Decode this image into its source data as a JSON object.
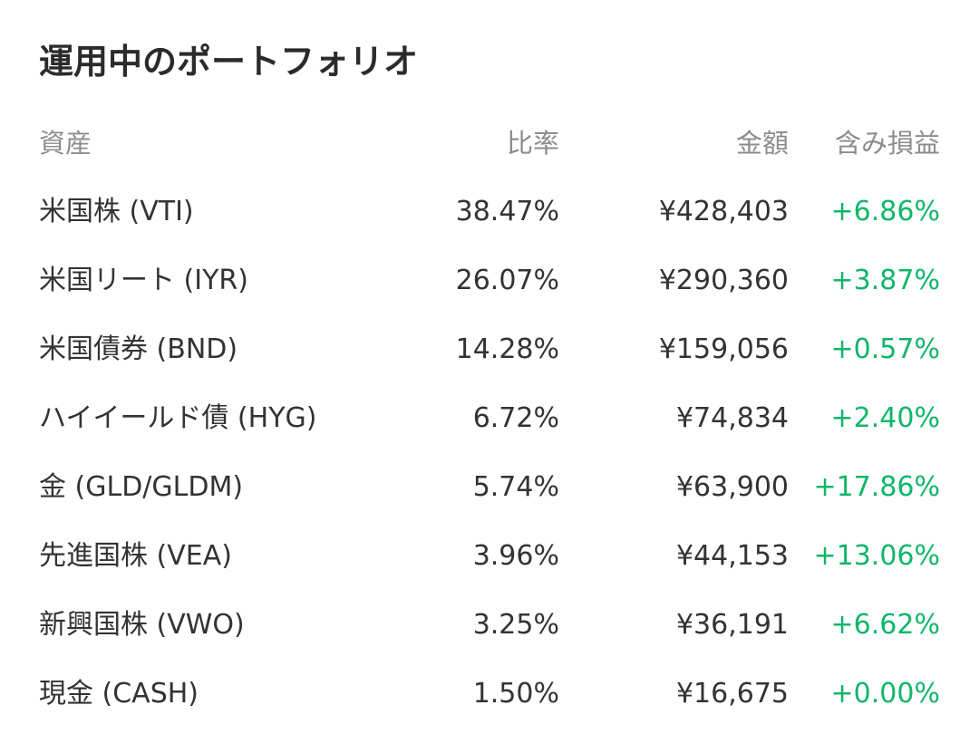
{
  "title": "運用中のポートフォリオ",
  "columns": {
    "asset": "資産",
    "ratio": "比率",
    "amount": "金額",
    "pnl": "含み損益"
  },
  "colors": {
    "text": "#333333",
    "header": "#8c8c8c",
    "gain": "#10b66a"
  },
  "rows": [
    {
      "asset": "米国株 (VTI)",
      "ratio": "38.47%",
      "amount": "¥428,403",
      "pnl": "+6.86%"
    },
    {
      "asset": "米国リート (IYR)",
      "ratio": "26.07%",
      "amount": "¥290,360",
      "pnl": "+3.87%"
    },
    {
      "asset": "米国債券 (BND)",
      "ratio": "14.28%",
      "amount": "¥159,056",
      "pnl": "+0.57%"
    },
    {
      "asset": "ハイイールド債 (HYG)",
      "ratio": "6.72%",
      "amount": "¥74,834",
      "pnl": "+2.40%"
    },
    {
      "asset": "金 (GLD/GLDM)",
      "ratio": "5.74%",
      "amount": "¥63,900",
      "pnl": "+17.86%"
    },
    {
      "asset": "先進国株 (VEA)",
      "ratio": "3.96%",
      "amount": "¥44,153",
      "pnl": "+13.06%"
    },
    {
      "asset": "新興国株 (VWO)",
      "ratio": "3.25%",
      "amount": "¥36,191",
      "pnl": "+6.62%"
    },
    {
      "asset": "現金 (CASH)",
      "ratio": "1.50%",
      "amount": "¥16,675",
      "pnl": "+0.00%"
    }
  ]
}
